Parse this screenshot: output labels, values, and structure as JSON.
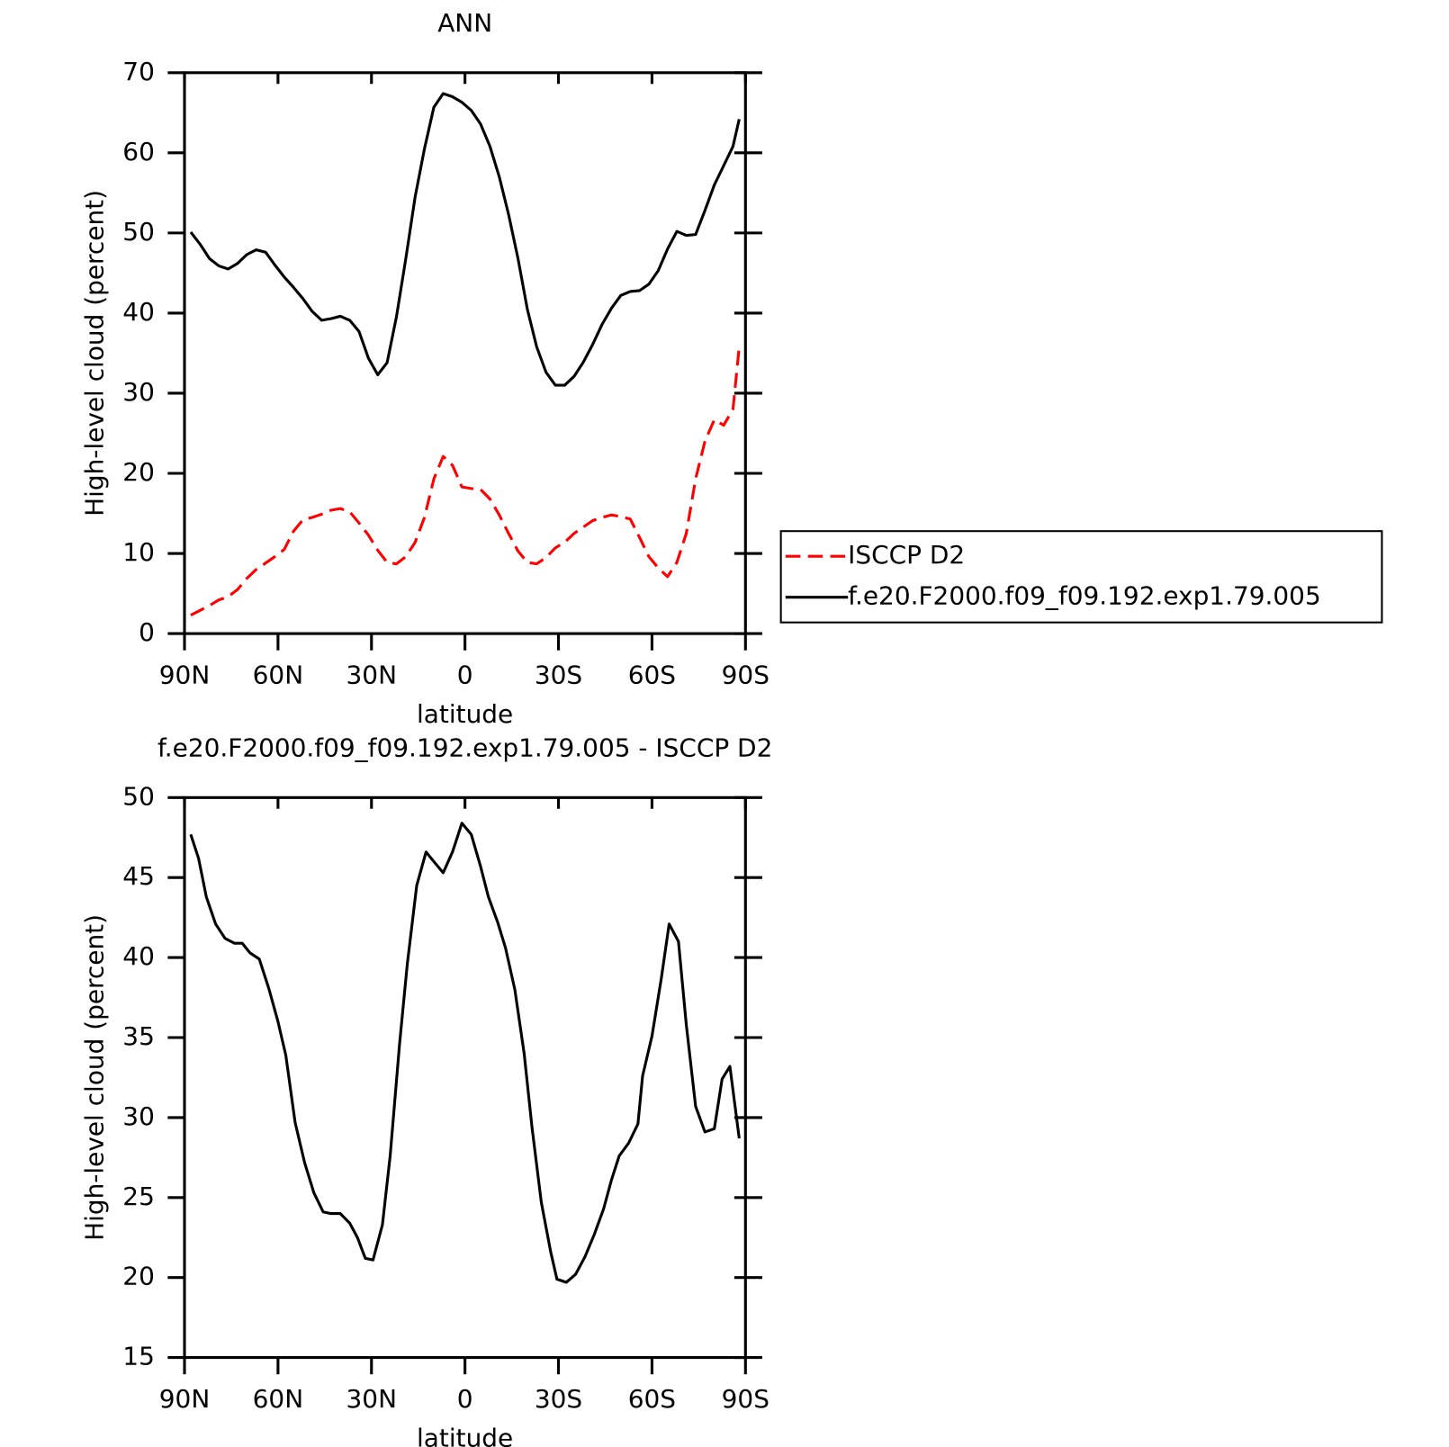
{
  "chart_data": [
    {
      "type": "line",
      "title": "ANN",
      "xlabel": "latitude",
      "ylabel": "High-level cloud (percent)",
      "x": [
        88,
        85,
        82,
        79,
        76,
        73,
        70,
        67,
        64,
        61,
        58,
        55,
        52,
        49,
        46,
        43,
        40,
        37,
        34,
        31,
        28,
        25,
        22,
        19,
        16,
        13,
        10,
        7,
        4,
        1,
        -2,
        -5,
        -8,
        -11,
        -14,
        -17,
        -20,
        -23,
        -26,
        -29,
        -32,
        -35,
        -38,
        -41,
        -44,
        -47,
        -50,
        -53,
        -56,
        -59,
        -62,
        -65,
        -68,
        -71,
        -74,
        -77,
        -80,
        -83,
        -86,
        -88
      ],
      "series": [
        {
          "name": "ISCCP D2",
          "color": "#ff0000",
          "dash": "dashed",
          "values": [
            2.3,
            2.9,
            3.5,
            4.2,
            4.6,
            5.5,
            6.9,
            8.0,
            8.8,
            9.6,
            10.5,
            12.8,
            14.2,
            14.5,
            14.9,
            15.4,
            15.6,
            15.2,
            13.8,
            12.3,
            10.4,
            8.9,
            8.7,
            9.6,
            11.4,
            14.5,
            19.3,
            22.1,
            21.0,
            18.3,
            18.1,
            18.0,
            16.8,
            14.8,
            12.5,
            10.3,
            8.9,
            8.7,
            9.5,
            10.7,
            11.4,
            12.5,
            13.3,
            14.1,
            14.5,
            14.8,
            14.6,
            14.3,
            12.0,
            9.6,
            8.2,
            7.1,
            8.9,
            12.5,
            19.3,
            24.0,
            26.7,
            26.0,
            28.0,
            35.8
          ]
        },
        {
          "name": "f.e20.F2000.f09_f09.192.exp1.79.005",
          "color": "#000000",
          "dash": "solid",
          "values": [
            50.1,
            48.6,
            46.8,
            45.9,
            45.5,
            46.2,
            47.3,
            47.9,
            47.6,
            46.0,
            44.5,
            43.2,
            41.8,
            40.2,
            39.1,
            39.3,
            39.6,
            39.1,
            37.7,
            34.4,
            32.3,
            33.8,
            39.5,
            46.8,
            54.5,
            60.5,
            65.7,
            67.4,
            67.0,
            66.3,
            65.3,
            63.6,
            60.8,
            57.0,
            52.3,
            46.8,
            40.5,
            35.8,
            32.6,
            31.0,
            31.0,
            32.1,
            33.9,
            36.1,
            38.6,
            40.6,
            42.2,
            42.7,
            42.8,
            43.6,
            45.3,
            48.0,
            50.2,
            49.7,
            49.8,
            52.8,
            56.0,
            58.4,
            60.8,
            64.2
          ]
        }
      ],
      "xlim": [
        90,
        -90
      ],
      "xticks": [
        {
          "value": 90,
          "label": "90N"
        },
        {
          "value": 60,
          "label": "60N"
        },
        {
          "value": 30,
          "label": "30N"
        },
        0,
        {
          "value": -30,
          "label": "30S"
        },
        {
          "value": -60,
          "label": "60S"
        },
        {
          "value": -90,
          "label": "90S"
        }
      ],
      "ylim": [
        0,
        70
      ],
      "yticks": [
        0,
        10,
        20,
        30,
        40,
        50,
        60,
        70
      ],
      "legend": "right"
    },
    {
      "type": "line",
      "title": "f.e20.F2000.f09_f09.192.exp1.79.005 - ISCCP D2",
      "xlabel": "latitude",
      "ylabel": "High-level cloud (percent)",
      "x": [
        88,
        85.5,
        83,
        80,
        77,
        74,
        71.5,
        69,
        66,
        63,
        60,
        57.5,
        54.5,
        51.5,
        48.5,
        45.5,
        43,
        40,
        37,
        34.5,
        32,
        29.5,
        26.5,
        24,
        21,
        18.5,
        15.5,
        12.5,
        10,
        7,
        4,
        1,
        -2,
        -5,
        -7.5,
        -10.5,
        -13,
        -16,
        -19,
        -21.5,
        -24.5,
        -27.5,
        -29.5,
        -32.5,
        -35.5,
        -38.5,
        -41.5,
        -44.5,
        -47,
        -49.5,
        -52.5,
        -55.5,
        -57,
        -60,
        -63,
        -65.5,
        -68.5,
        -71,
        -74,
        -77,
        -80,
        -82.5,
        -85,
        -88
      ],
      "series": [
        {
          "color": "#000000",
          "dash": "solid",
          "values": [
            47.7,
            46.2,
            43.8,
            42.1,
            41.2,
            40.9,
            40.9,
            40.3,
            39.9,
            38.1,
            36.0,
            33.9,
            29.7,
            27.2,
            25.3,
            24.1,
            24.0,
            24.0,
            23.4,
            22.5,
            21.2,
            21.1,
            23.3,
            27.6,
            34.6,
            39.6,
            44.5,
            46.6,
            46.0,
            45.3,
            46.6,
            48.4,
            47.7,
            45.7,
            43.8,
            42.2,
            40.6,
            38.0,
            34.0,
            29.4,
            24.7,
            21.6,
            19.9,
            19.7,
            20.2,
            21.3,
            22.7,
            24.3,
            26.1,
            27.6,
            28.4,
            29.6,
            32.6,
            35.1,
            38.7,
            42.1,
            41.0,
            35.8,
            30.7,
            29.1,
            29.3,
            32.4,
            33.2,
            28.7
          ]
        }
      ],
      "xlim": [
        90,
        -90
      ],
      "xticks": [
        {
          "value": 90,
          "label": "90N"
        },
        {
          "value": 60,
          "label": "60N"
        },
        {
          "value": 30,
          "label": "30N"
        },
        0,
        {
          "value": -30,
          "label": "30S"
        },
        {
          "value": -60,
          "label": "60S"
        },
        {
          "value": -90,
          "label": "90S"
        }
      ],
      "ylim": [
        15,
        50
      ],
      "yticks": [
        15,
        20,
        25,
        30,
        35,
        40,
        45,
        50
      ]
    }
  ]
}
